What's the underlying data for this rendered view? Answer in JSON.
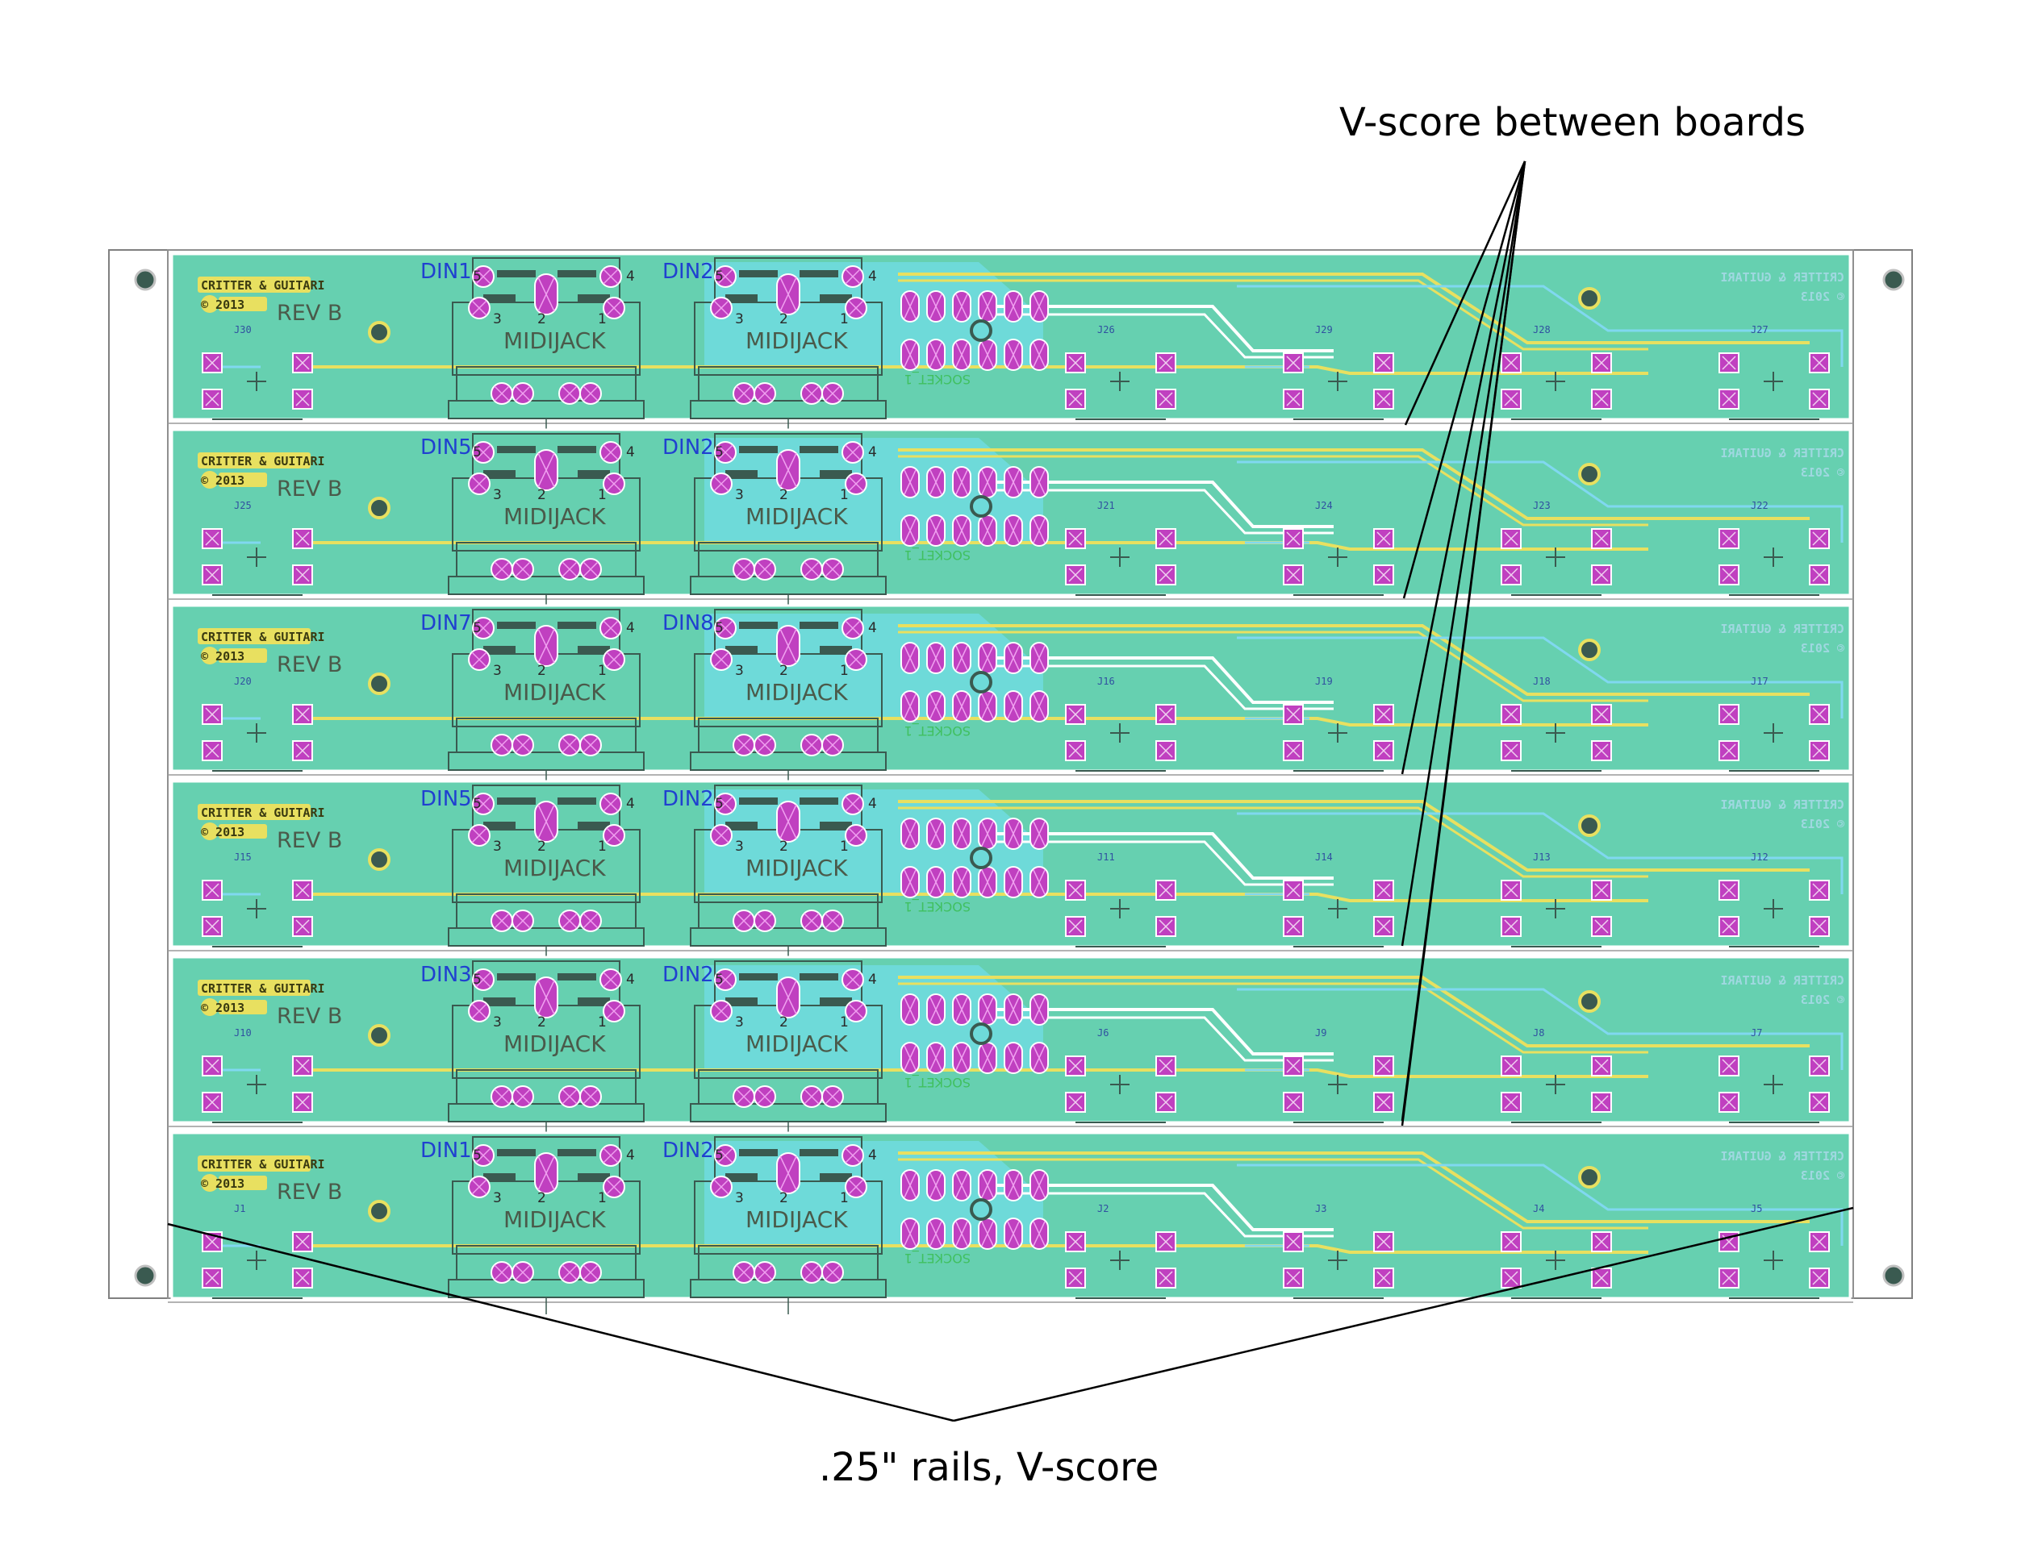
{
  "callouts": {
    "top": "V-score between boards",
    "bottom": ".25\" rails, V-score"
  },
  "board_silkscreen": {
    "brand": "CRITTER & GUITARI",
    "year": "© 2013",
    "revision": "REV B",
    "jack_label": "MIDIJACK",
    "socket_label": "SOCKET_1",
    "mirror_brand": "CRITTER & GUITARI",
    "mirror_year": "© 2013"
  },
  "boards": [
    {
      "din_left": "DIN1",
      "din_right": "DIN2",
      "refs": [
        "J30",
        "J26",
        "J29",
        "J28",
        "J27"
      ]
    },
    {
      "din_left": "DIN5",
      "din_right": "DIN2",
      "refs": [
        "J25",
        "J21",
        "J24",
        "J23",
        "J22"
      ]
    },
    {
      "din_left": "DIN7",
      "din_right": "DIN8",
      "refs": [
        "J20",
        "J16",
        "J19",
        "J18",
        "J17"
      ]
    },
    {
      "din_left": "DIN5",
      "din_right": "DIN2",
      "refs": [
        "J15",
        "J11",
        "J14",
        "J13",
        "J12"
      ]
    },
    {
      "din_left": "DIN3",
      "din_right": "DIN2",
      "refs": [
        "J10",
        "J6",
        "J9",
        "J8",
        "J7"
      ]
    },
    {
      "din_left": "DIN1",
      "din_right": "DIN2",
      "refs": [
        "J1",
        "J2",
        "J3",
        "J4",
        "J5"
      ]
    }
  ],
  "pin_numbers": [
    "5",
    "4",
    "3",
    "2",
    "1"
  ],
  "colors": {
    "board": "#66d0b0",
    "copper_top": "#e8e060",
    "trace_blue": "#80d8f0",
    "pad": "#c040c0",
    "mount_hole": "#3a5a50",
    "rail_outline": "#808080",
    "vscore_line": "#ffffff"
  }
}
